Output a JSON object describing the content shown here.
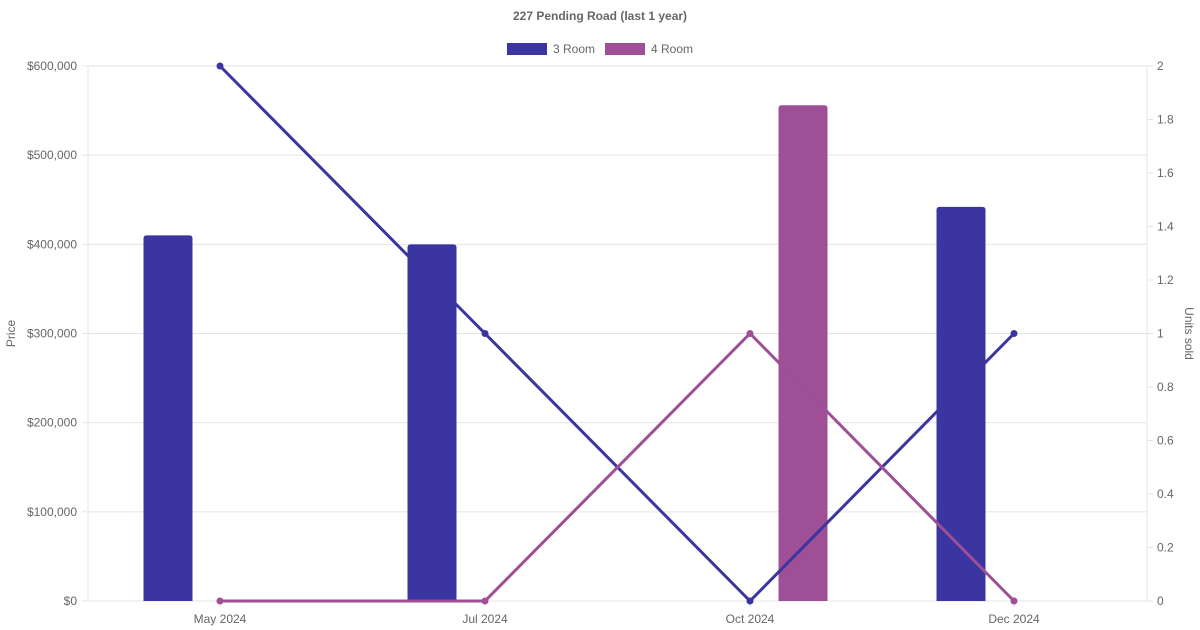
{
  "chart_data": {
    "type": "bar",
    "title": "227 Pending Road (last 1 year)",
    "categories": [
      "May 2024",
      "Jul 2024",
      "Oct 2024",
      "Dec 2024"
    ],
    "left_axis": {
      "label": "Price",
      "ylim": [
        0,
        600000
      ],
      "ticks": [
        "$0",
        "$100,000",
        "$200,000",
        "$300,000",
        "$400,000",
        "$500,000",
        "$600,000"
      ],
      "tick_values": [
        0,
        100000,
        200000,
        300000,
        400000,
        500000,
        600000
      ]
    },
    "right_axis": {
      "label": "Units sold",
      "ylim": [
        0,
        2
      ],
      "ticks": [
        "0",
        "0.2",
        "0.4",
        "0.6",
        "0.8",
        "1",
        "1.2",
        "1.4",
        "1.6",
        "1.8",
        "2"
      ],
      "tick_values": [
        0,
        0.2,
        0.4,
        0.6,
        0.8,
        1,
        1.2,
        1.4,
        1.6,
        1.8,
        2
      ]
    },
    "bar_series": [
      {
        "name": "3 Room",
        "color": "#3a35a0",
        "values": [
          410000,
          400000,
          null,
          442000
        ]
      },
      {
        "name": "4 Room",
        "color": "#9e4f95",
        "values": [
          null,
          null,
          556000,
          null
        ]
      }
    ],
    "line_series": [
      {
        "name": "3 Room",
        "color": "#3a35a0",
        "values": [
          2,
          1,
          0,
          1
        ]
      },
      {
        "name": "4 Room",
        "color": "#9e4f95",
        "values": [
          0,
          0,
          1,
          0
        ]
      }
    ],
    "legend": [
      {
        "name": "3 Room",
        "color": "#3a35a0"
      },
      {
        "name": "4 Room",
        "color": "#9e4f95"
      }
    ],
    "legend_position": "top",
    "grid": true
  }
}
